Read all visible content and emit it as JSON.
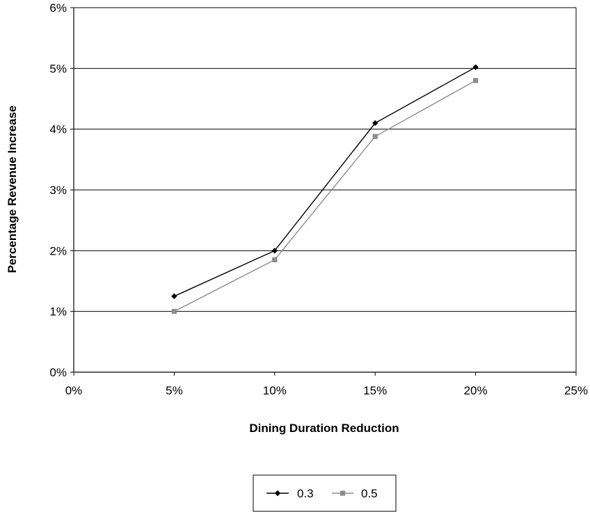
{
  "chart_data": {
    "type": "line",
    "xlabel": "Dining Duration Reduction",
    "ylabel": "Percentage Revenue Increase",
    "x": [
      5,
      10,
      15,
      20
    ],
    "xlim": [
      0,
      25
    ],
    "ylim": [
      0,
      6
    ],
    "x_ticks": [
      0,
      5,
      10,
      15,
      20,
      25
    ],
    "y_ticks": [
      0,
      1,
      2,
      3,
      4,
      5,
      6
    ],
    "x_tick_labels": [
      "0%",
      "5%",
      "10%",
      "15%",
      "20%",
      "25%"
    ],
    "y_tick_labels": [
      "0%",
      "1%",
      "2%",
      "3%",
      "4%",
      "5%",
      "6%"
    ],
    "horizontal_grid": true,
    "vertical_grid": false,
    "legend_position": "bottom",
    "series": [
      {
        "name": "0.3",
        "values": [
          1.25,
          2.0,
          4.1,
          5.02
        ],
        "color": "#000000",
        "marker": "diamond"
      },
      {
        "name": "0.5",
        "values": [
          1.0,
          1.85,
          3.88,
          4.8
        ],
        "color": "#8c8c8c",
        "marker": "square"
      }
    ]
  }
}
